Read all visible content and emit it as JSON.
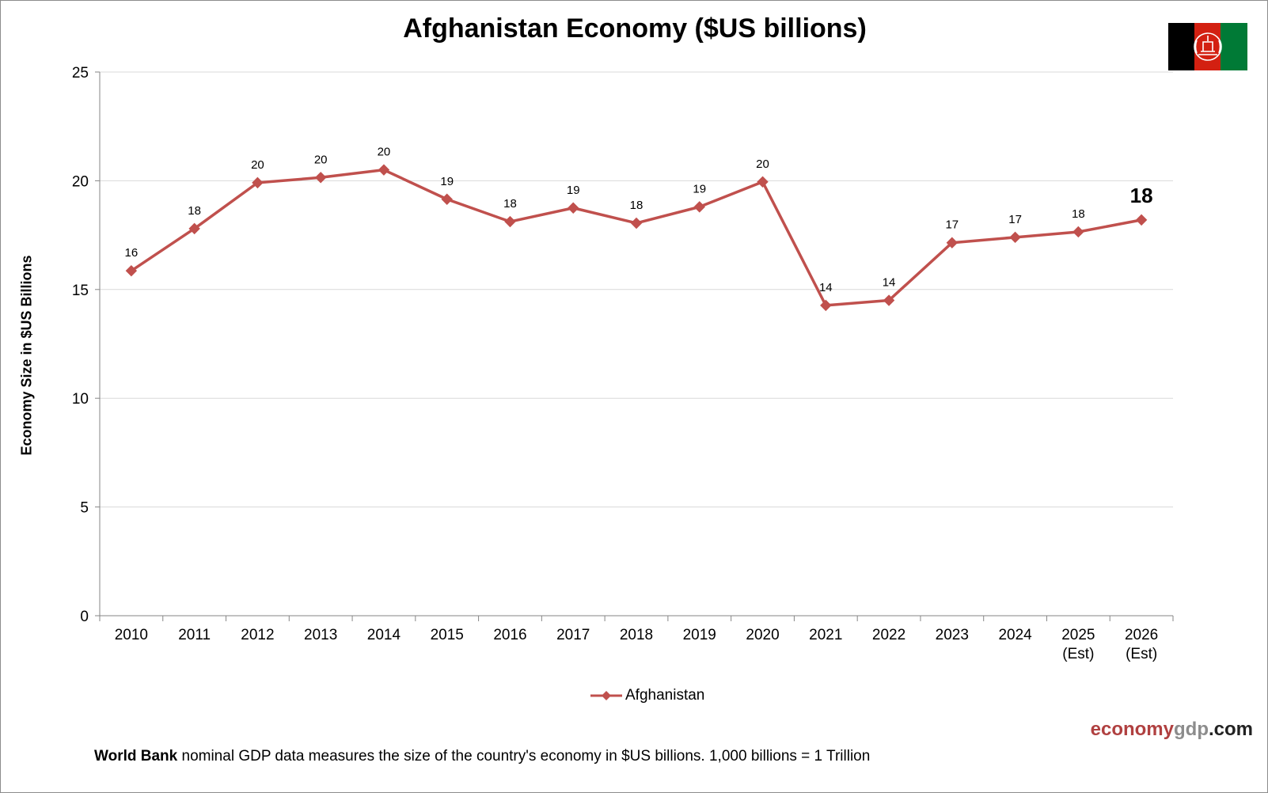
{
  "chart_data": {
    "type": "line",
    "title": "Afghanistan Economy ($US billions)",
    "ylabel": "Economy Size in $US Billions",
    "xlabel": "",
    "ylim": [
      0,
      25
    ],
    "yticks": [
      0,
      5,
      10,
      15,
      20,
      25
    ],
    "grid": true,
    "legend_position": "bottom",
    "categories": [
      [
        "2010"
      ],
      [
        "2011"
      ],
      [
        "2012"
      ],
      [
        "2013"
      ],
      [
        "2014"
      ],
      [
        "2015"
      ],
      [
        "2016"
      ],
      [
        "2017"
      ],
      [
        "2018"
      ],
      [
        "2019"
      ],
      [
        "2020"
      ],
      [
        "2021"
      ],
      [
        "2022"
      ],
      [
        "2023"
      ],
      [
        "2024"
      ],
      [
        "2025",
        "(Est)"
      ],
      [
        "2026",
        "(Est)"
      ]
    ],
    "series": [
      {
        "name": "Afghanistan",
        "color": "#c0504d",
        "marker": "diamond",
        "values": [
          15.86,
          17.8,
          19.91,
          20.15,
          20.5,
          19.15,
          18.12,
          18.75,
          18.05,
          18.8,
          19.95,
          14.27,
          14.5,
          17.15,
          17.4,
          17.65,
          18.2
        ],
        "labels": [
          "16",
          "18",
          "20",
          "20",
          "20",
          "19",
          "18",
          "19",
          "18",
          "19",
          "20",
          "14",
          "14",
          "17",
          "17",
          "18",
          "18"
        ],
        "emphasized_label_index": 16
      }
    ]
  },
  "branding": {
    "part1": "economy",
    "part2": "gdp",
    "part3": ".com"
  },
  "footnote": {
    "bold": "World Bank",
    "text": " nominal GDP data  measures the size of the country's economy in $US billions. 1,000 billions = 1 Trillion"
  },
  "flag": {
    "colors": [
      "#000000",
      "#d32011",
      "#007a36"
    ],
    "emblem_color": "#ffffff"
  }
}
